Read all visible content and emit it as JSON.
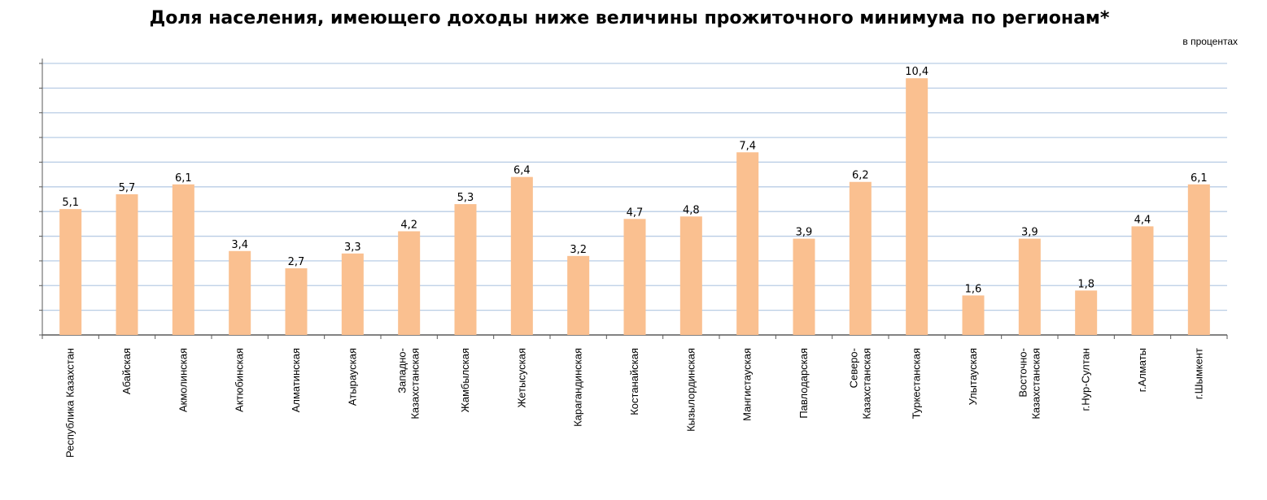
{
  "chart_data": {
    "type": "bar",
    "title": "Доля населения, имеющего доходы ниже величины прожиточного минимума по регионам*",
    "unit_label": "в процентах",
    "categories": [
      [
        "Республика Казахстан"
      ],
      [
        "Абайская"
      ],
      [
        "Акмолинская"
      ],
      [
        "Актюбинская"
      ],
      [
        "Алматинская"
      ],
      [
        "Атырауская"
      ],
      [
        "Западно-",
        "Казахстанская"
      ],
      [
        "Жамбылская"
      ],
      [
        "Жетысуская"
      ],
      [
        "Карагандинская"
      ],
      [
        "Костанайская"
      ],
      [
        "Кызылординская"
      ],
      [
        "Мангистауская"
      ],
      [
        "Павлодарская"
      ],
      [
        "Северо-",
        "Казахстанская"
      ],
      [
        "Туркестанская"
      ],
      [
        "Улытауская"
      ],
      [
        "Восточно-",
        "Казахстанская"
      ],
      [
        "г.Нур-Султан"
      ],
      [
        "г.Алматы"
      ],
      [
        "г.Шымкент"
      ]
    ],
    "values": [
      5.1,
      5.7,
      6.1,
      3.4,
      2.7,
      3.3,
      4.2,
      5.3,
      6.4,
      3.2,
      4.7,
      4.8,
      7.4,
      3.9,
      6.2,
      10.4,
      1.6,
      3.9,
      1.8,
      4.4,
      6.1
    ],
    "value_labels": [
      "5,1",
      "5,7",
      "6,1",
      "3,4",
      "2,7",
      "3,3",
      "4,2",
      "5,3",
      "6,4",
      "3,2",
      "4,7",
      "4,8",
      "7,4",
      "3,9",
      "6,2",
      "10,4",
      "1,6",
      "3,9",
      "1,8",
      "4,4",
      "6,1"
    ],
    "ylim": [
      0,
      11
    ],
    "y_grid_step": 1,
    "grid": true,
    "colors": {
      "bar": "#FAC090",
      "grid": "#B9CDE5",
      "axis": "#595959"
    }
  }
}
